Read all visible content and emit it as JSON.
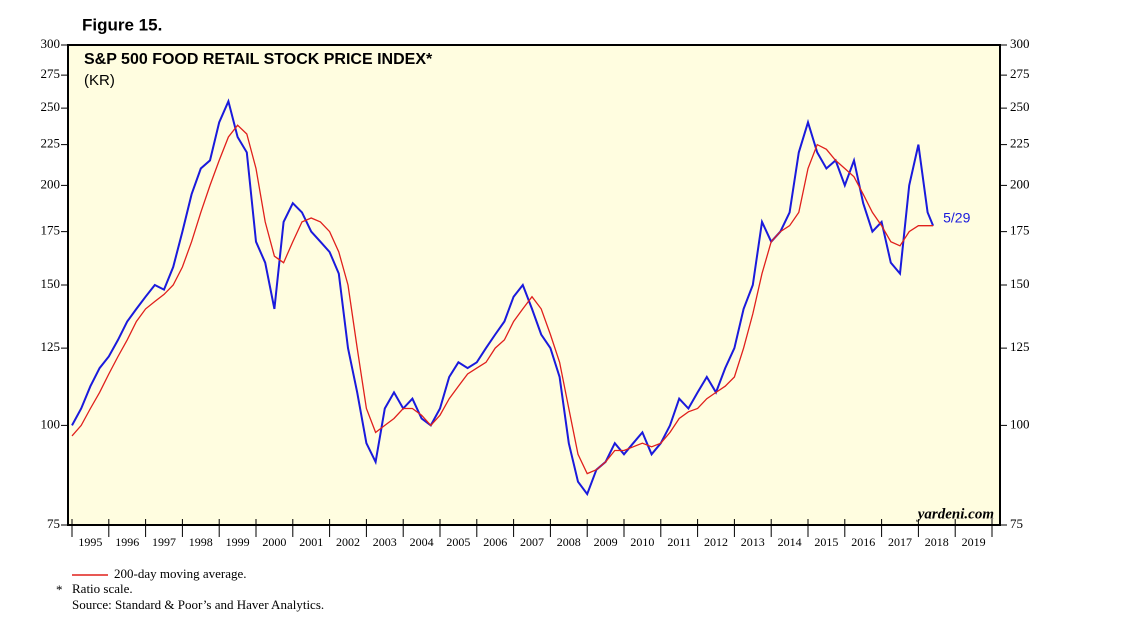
{
  "chart_data": {
    "type": "line",
    "figure_label": "Figure 15.",
    "title": "S&P 500 FOOD RETAIL STOCK PRICE INDEX*",
    "subtitle": "(KR)",
    "annotation": "5/29",
    "watermark": "yardeni.com",
    "footnote_marker": "*",
    "footnote": "Ratio scale.",
    "source": "Source: Standard & Poor’s and Haver Analytics.",
    "log_scale": true,
    "background": "#fffde0",
    "xlim": [
      1995,
      2020
    ],
    "xticks": [
      1995,
      1996,
      1997,
      1998,
      1999,
      2000,
      2001,
      2002,
      2003,
      2004,
      2005,
      2006,
      2007,
      2008,
      2009,
      2010,
      2011,
      2012,
      2013,
      2014,
      2015,
      2016,
      2017,
      2018,
      2019,
      2020
    ],
    "x_labels": [
      "1995",
      "1996",
      "1997",
      "1998",
      "1999",
      "2000",
      "2001",
      "2002",
      "2003",
      "2004",
      "2005",
      "2006",
      "2007",
      "2008",
      "2009",
      "2010",
      "2011",
      "2012",
      "2013",
      "2014",
      "2015",
      "2016",
      "2017",
      "2018",
      "2019"
    ],
    "ylim": [
      75,
      300
    ],
    "yticks": [
      75,
      100,
      125,
      150,
      175,
      200,
      225,
      250,
      275,
      300
    ],
    "x": [
      1995,
      1995.25,
      1995.5,
      1995.75,
      1996,
      1996.25,
      1996.5,
      1996.75,
      1997,
      1997.25,
      1997.5,
      1997.75,
      1998,
      1998.25,
      1998.5,
      1998.75,
      1999,
      1999.25,
      1999.5,
      1999.75,
      2000,
      2000.25,
      2000.5,
      2000.75,
      2001,
      2001.25,
      2001.5,
      2001.75,
      2002,
      2002.25,
      2002.5,
      2002.75,
      2003,
      2003.25,
      2003.5,
      2003.75,
      2004,
      2004.25,
      2004.5,
      2004.75,
      2005,
      2005.25,
      2005.5,
      2005.75,
      2006,
      2006.25,
      2006.5,
      2006.75,
      2007,
      2007.25,
      2007.5,
      2007.75,
      2008,
      2008.25,
      2008.5,
      2008.75,
      2009,
      2009.25,
      2009.5,
      2009.75,
      2010,
      2010.25,
      2010.5,
      2010.75,
      2011,
      2011.25,
      2011.5,
      2011.75,
      2012,
      2012.25,
      2012.5,
      2012.75,
      2013,
      2013.25,
      2013.5,
      2013.75,
      2014,
      2014.25,
      2014.5,
      2014.75,
      2015,
      2015.25,
      2015.5,
      2015.75,
      2016,
      2016.25,
      2016.5,
      2016.75,
      2017,
      2017.25,
      2017.5,
      2017.75,
      2018,
      2018.25,
      2018.4
    ],
    "series": [
      {
        "color": "#1a1adc",
        "values": [
          100,
          105,
          112,
          118,
          122,
          128,
          135,
          140,
          145,
          150,
          148,
          158,
          175,
          195,
          210,
          215,
          240,
          255,
          230,
          220,
          170,
          160,
          140,
          180,
          190,
          185,
          175,
          170,
          165,
          155,
          125,
          110,
          95,
          90,
          105,
          110,
          105,
          108,
          102,
          100,
          105,
          115,
          120,
          118,
          120,
          125,
          130,
          135,
          145,
          150,
          140,
          130,
          125,
          115,
          95,
          85,
          82,
          88,
          90,
          95,
          92,
          95,
          98,
          92,
          95,
          100,
          108,
          105,
          110,
          115,
          110,
          118,
          125,
          140,
          150,
          180,
          170,
          175,
          185,
          220,
          240,
          220,
          210,
          215,
          200,
          215,
          190,
          175,
          180,
          160,
          155,
          200,
          225,
          185,
          178
        ]
      },
      {
        "name": "200-day moving average.",
        "color": "#e0201c",
        "values": [
          97,
          100,
          105,
          110,
          116,
          122,
          128,
          135,
          140,
          143,
          146,
          150,
          158,
          170,
          185,
          200,
          215,
          230,
          238,
          232,
          210,
          180,
          163,
          160,
          170,
          180,
          182,
          180,
          175,
          165,
          150,
          125,
          105,
          98,
          100,
          102,
          105,
          105,
          103,
          100,
          103,
          108,
          112,
          116,
          118,
          120,
          125,
          128,
          135,
          140,
          145,
          140,
          130,
          120,
          105,
          92,
          87,
          88,
          90,
          93,
          93,
          94,
          95,
          94,
          95,
          98,
          102,
          104,
          105,
          108,
          110,
          112,
          115,
          125,
          138,
          155,
          170,
          175,
          178,
          185,
          210,
          225,
          222,
          215,
          210,
          205,
          195,
          185,
          178,
          170,
          168,
          175,
          178,
          178,
          178
        ]
      }
    ]
  }
}
